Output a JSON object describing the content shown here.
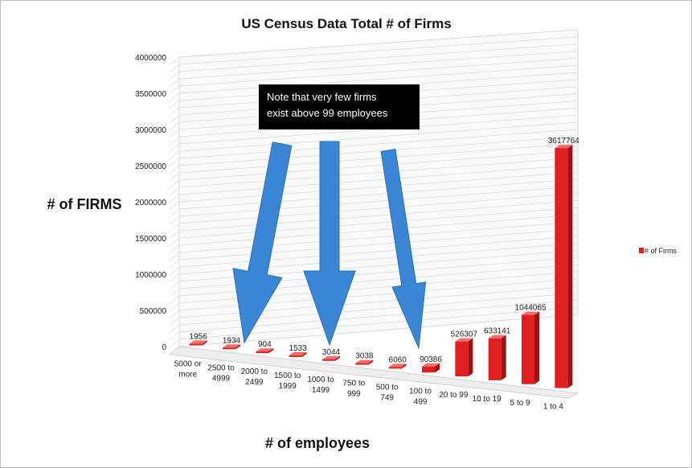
{
  "chart_data": {
    "type": "bar",
    "title": "US Census Data Total # of Firms",
    "xlabel": "# of employees",
    "ylabel": "# of FIRMS",
    "ylim": [
      0,
      4000000
    ],
    "yticks": [
      "0",
      "500000",
      "1000000",
      "1500000",
      "2000000",
      "2500000",
      "3000000",
      "3500000",
      "4000000"
    ],
    "categories": [
      [
        "5000 or",
        "more"
      ],
      [
        "2500 to",
        "4999"
      ],
      [
        "2000 to",
        "2499"
      ],
      [
        "1500 to",
        "1999"
      ],
      [
        "1000 to",
        "1499"
      ],
      [
        "750 to",
        "999"
      ],
      [
        "500 to",
        "749"
      ],
      [
        "100 to",
        "499"
      ],
      [
        "20 to 99"
      ],
      [
        "10 to 19"
      ],
      [
        "5 to 9"
      ],
      [
        "1 to 4"
      ]
    ],
    "series": [
      {
        "name": "# of Firms",
        "values": [
          1956,
          1934,
          904,
          1533,
          3044,
          3038,
          6060,
          90386,
          526307,
          633141,
          1044065,
          3617764
        ],
        "color": "#e02020"
      }
    ],
    "data_labels": [
      "1956",
      "1934",
      "904",
      "1533",
      "3044",
      "3038",
      "6060",
      "90386",
      "526307",
      "633141",
      "1044065",
      "3617764"
    ],
    "legend_placement": "right",
    "grid": true,
    "annotation": {
      "lines": [
        "Note that very few firms",
        "exist above  99 employees"
      ],
      "arrow_color": "#3a86d4"
    }
  }
}
